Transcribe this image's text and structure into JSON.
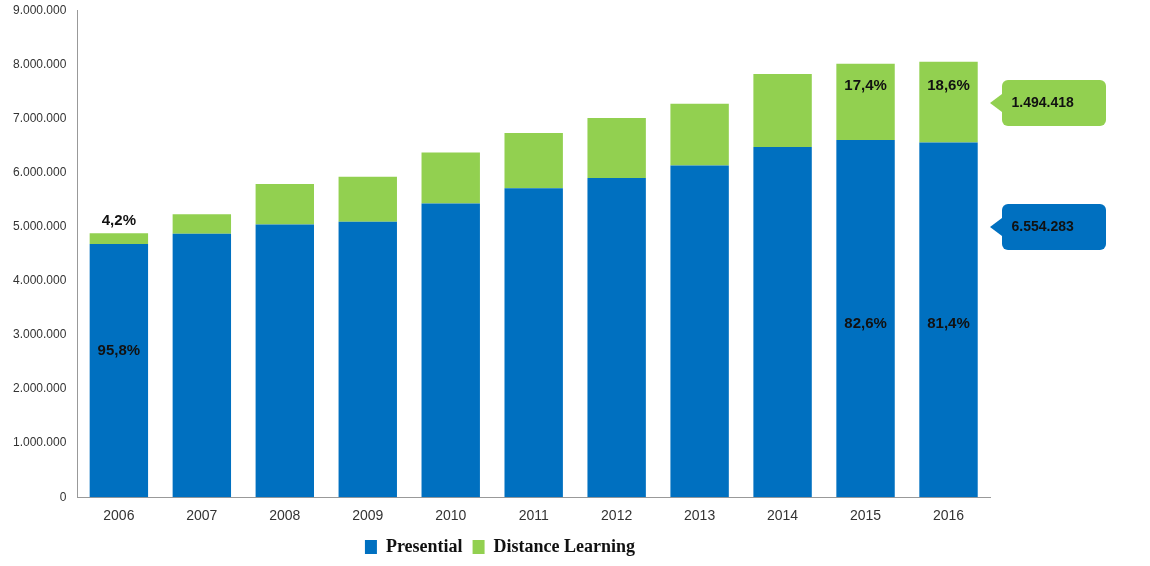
{
  "chart_data": {
    "type": "bar",
    "stacked": true,
    "categories": [
      "2006",
      "2007",
      "2008",
      "2009",
      "2010",
      "2011",
      "2012",
      "2013",
      "2014",
      "2015",
      "2016"
    ],
    "series": [
      {
        "name": "Presential",
        "color": "#0070c0",
        "values": [
          4680000,
          4870000,
          5040000,
          5090000,
          5430000,
          5710000,
          5900000,
          6130000,
          6470000,
          6600000,
          6554283
        ]
      },
      {
        "name": "Distance Learning",
        "color": "#92d050",
        "values": [
          200000,
          360000,
          750000,
          830000,
          940000,
          1020000,
          1110000,
          1140000,
          1350000,
          1410000,
          1494418
        ]
      }
    ],
    "ylim": [
      0,
      9000000
    ],
    "yticks": [
      0,
      {
        "value": 1000000,
        "label": "1.000.000"
      },
      {
        "value": 2000000,
        "label": "2.000.000"
      },
      {
        "value": 3000000,
        "label": "3.000.000"
      },
      {
        "value": 4000000,
        "label": "4.000.000"
      },
      {
        "value": 5000000,
        "label": "5.000.000"
      },
      {
        "value": 6000000,
        "label": "6.000.000"
      },
      {
        "value": 7000000,
        "label": "7.000.000"
      },
      {
        "value": 8000000,
        "label": "8.000.000"
      },
      {
        "value": 9000000,
        "label": "9.000.000"
      }
    ],
    "annotations": [
      "95,8%",
      "4,2%",
      "82,6%",
      "17,4%",
      "81,4%",
      "18,6%",
      "1.494.418",
      "6.554.283"
    ],
    "grid": false,
    "legend": "bottom"
  }
}
